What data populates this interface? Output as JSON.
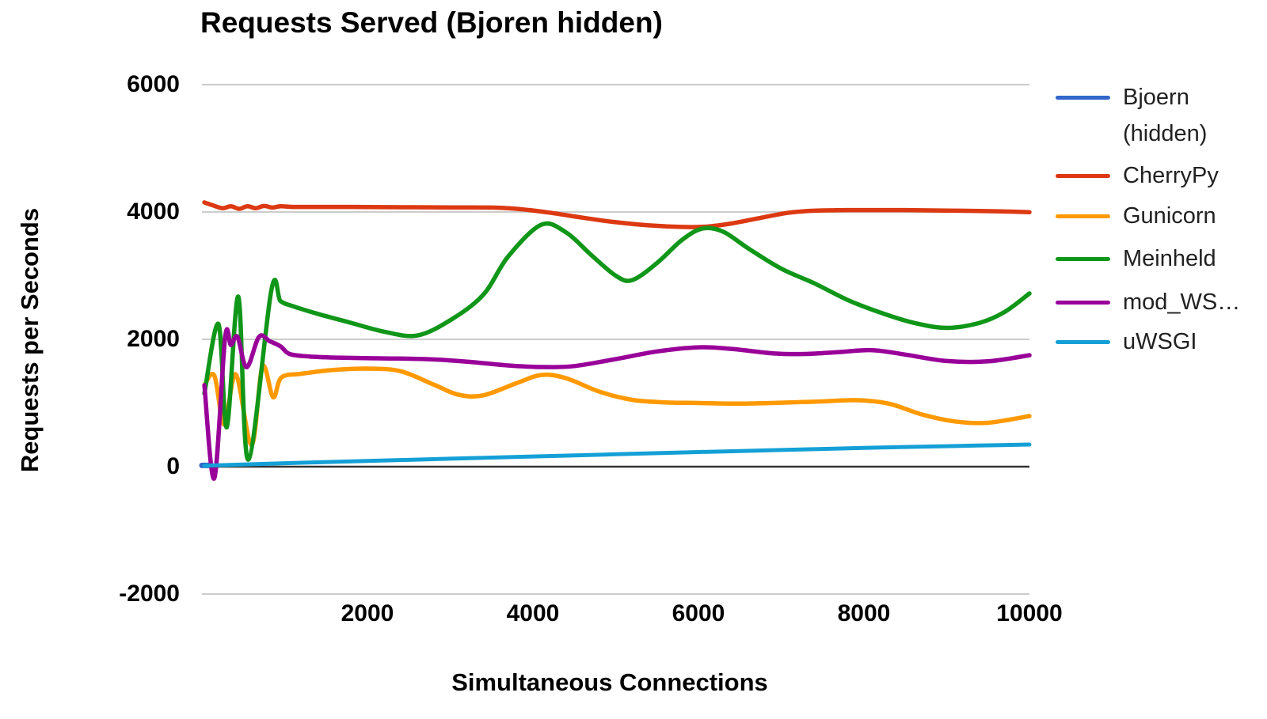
{
  "title": "Requests Served (Bjoren hidden)",
  "axes": {
    "y_title": "Requests per Seconds",
    "x_title": "Simultaneous Connections",
    "y_ticks": [
      6000,
      4000,
      2000,
      0,
      -2000
    ],
    "x_ticks": [
      2000,
      4000,
      6000,
      8000,
      10000
    ]
  },
  "colors": {
    "background": "#ffffff",
    "gridline": "#cccccc",
    "zero_axis": "#333333",
    "tick_text": "#000000",
    "legend_text": "#212121"
  },
  "legend": [
    {
      "label": "Bjoern",
      "label2": "(hidden)",
      "color": "#3366CC"
    },
    {
      "label": "CherryPy",
      "color": "#DC3912"
    },
    {
      "label": "Gunicorn",
      "color": "#FF9900"
    },
    {
      "label": "Meinheld",
      "color": "#109618"
    },
    {
      "label": "mod_WS…",
      "color": "#990099"
    },
    {
      "label": "uWSGI",
      "color": "#14A0D6"
    }
  ],
  "chart_data": {
    "type": "line",
    "title": "Requests Served (Bjoren hidden)",
    "xlabel": "Simultaneous Connections",
    "ylabel": "Requests per Seconds",
    "xlim": [
      0,
      10000
    ],
    "ylim": [
      -2000,
      6000
    ],
    "grid": true,
    "legend_position": "right",
    "x_ticks": [
      2000,
      4000,
      6000,
      8000,
      10000
    ],
    "y_ticks": [
      6000,
      4000,
      2000,
      0,
      -2000
    ],
    "series": [
      {
        "name": "Bjoern (hidden)",
        "color": "#3366CC",
        "width": 7,
        "hidden": true,
        "points": [
          [
            0,
            20
          ],
          [
            80,
            20
          ]
        ]
      },
      {
        "name": "CherryPy",
        "color": "#DC3912",
        "width": 5.5,
        "points": [
          [
            30,
            4150
          ],
          [
            120,
            4110
          ],
          [
            250,
            4060
          ],
          [
            350,
            4090
          ],
          [
            450,
            4050
          ],
          [
            550,
            4090
          ],
          [
            650,
            4060
          ],
          [
            750,
            4095
          ],
          [
            850,
            4070
          ],
          [
            950,
            4090
          ],
          [
            1100,
            4080
          ],
          [
            1500,
            4080
          ],
          [
            2000,
            4078
          ],
          [
            2500,
            4075
          ],
          [
            3000,
            4072
          ],
          [
            3500,
            4070
          ],
          [
            3800,
            4050
          ],
          [
            4200,
            3990
          ],
          [
            4600,
            3910
          ],
          [
            5000,
            3840
          ],
          [
            5400,
            3790
          ],
          [
            5800,
            3765
          ],
          [
            6100,
            3770
          ],
          [
            6400,
            3820
          ],
          [
            6800,
            3920
          ],
          [
            7100,
            3990
          ],
          [
            7400,
            4020
          ],
          [
            7800,
            4030
          ],
          [
            8200,
            4030
          ],
          [
            8600,
            4028
          ],
          [
            9000,
            4022
          ],
          [
            9400,
            4015
          ],
          [
            9700,
            4008
          ],
          [
            10000,
            3998
          ]
        ]
      },
      {
        "name": "Gunicorn",
        "color": "#FF9900",
        "width": 5.5,
        "points": [
          [
            30,
            1280
          ],
          [
            150,
            1430
          ],
          [
            270,
            660
          ],
          [
            410,
            1450
          ],
          [
            600,
            340
          ],
          [
            730,
            1570
          ],
          [
            860,
            1090
          ],
          [
            960,
            1400
          ],
          [
            1200,
            1460
          ],
          [
            1600,
            1520
          ],
          [
            2000,
            1540
          ],
          [
            2400,
            1500
          ],
          [
            2800,
            1290
          ],
          [
            3100,
            1130
          ],
          [
            3400,
            1120
          ],
          [
            3800,
            1310
          ],
          [
            4100,
            1440
          ],
          [
            4400,
            1390
          ],
          [
            4800,
            1180
          ],
          [
            5200,
            1050
          ],
          [
            5600,
            1010
          ],
          [
            6000,
            1000
          ],
          [
            6500,
            990
          ],
          [
            7000,
            1005
          ],
          [
            7500,
            1025
          ],
          [
            7900,
            1045
          ],
          [
            8300,
            990
          ],
          [
            8700,
            820
          ],
          [
            9100,
            710
          ],
          [
            9500,
            690
          ],
          [
            10000,
            795
          ]
        ]
      },
      {
        "name": "Meinheld",
        "color": "#109618",
        "width": 5.5,
        "points": [
          [
            30,
            1150
          ],
          [
            200,
            2240
          ],
          [
            300,
            620
          ],
          [
            440,
            2670
          ],
          [
            560,
            110
          ],
          [
            840,
            2780
          ],
          [
            950,
            2600
          ],
          [
            1100,
            2520
          ],
          [
            1400,
            2400
          ],
          [
            1800,
            2260
          ],
          [
            2200,
            2120
          ],
          [
            2600,
            2060
          ],
          [
            3000,
            2300
          ],
          [
            3400,
            2700
          ],
          [
            3700,
            3300
          ],
          [
            4100,
            3800
          ],
          [
            4400,
            3680
          ],
          [
            4700,
            3330
          ],
          [
            5000,
            3000
          ],
          [
            5200,
            2930
          ],
          [
            5500,
            3200
          ],
          [
            5800,
            3560
          ],
          [
            6050,
            3740
          ],
          [
            6300,
            3690
          ],
          [
            6600,
            3430
          ],
          [
            7000,
            3110
          ],
          [
            7400,
            2880
          ],
          [
            7800,
            2620
          ],
          [
            8200,
            2420
          ],
          [
            8600,
            2260
          ],
          [
            9000,
            2180
          ],
          [
            9400,
            2260
          ],
          [
            9700,
            2430
          ],
          [
            10000,
            2720
          ]
        ]
      },
      {
        "name": "mod_WS…",
        "color": "#990099",
        "width": 5.5,
        "points": [
          [
            30,
            1280
          ],
          [
            150,
            -180
          ],
          [
            280,
            2030
          ],
          [
            350,
            1910
          ],
          [
            430,
            2040
          ],
          [
            540,
            1560
          ],
          [
            690,
            2040
          ],
          [
            820,
            1970
          ],
          [
            950,
            1890
          ],
          [
            1060,
            1770
          ],
          [
            1300,
            1730
          ],
          [
            1700,
            1710
          ],
          [
            2200,
            1700
          ],
          [
            2700,
            1690
          ],
          [
            3200,
            1650
          ],
          [
            3700,
            1590
          ],
          [
            4100,
            1565
          ],
          [
            4500,
            1580
          ],
          [
            5000,
            1690
          ],
          [
            5500,
            1810
          ],
          [
            6000,
            1875
          ],
          [
            6400,
            1850
          ],
          [
            6900,
            1780
          ],
          [
            7300,
            1770
          ],
          [
            7700,
            1800
          ],
          [
            8100,
            1830
          ],
          [
            8500,
            1760
          ],
          [
            9000,
            1660
          ],
          [
            9500,
            1655
          ],
          [
            10000,
            1750
          ]
        ]
      },
      {
        "name": "uWSGI",
        "color": "#14A0D6",
        "width": 5,
        "points": [
          [
            30,
            15
          ],
          [
            1000,
            55
          ],
          [
            2000,
            90
          ],
          [
            3000,
            125
          ],
          [
            4000,
            160
          ],
          [
            5000,
            195
          ],
          [
            6000,
            230
          ],
          [
            7000,
            262
          ],
          [
            8000,
            295
          ],
          [
            9000,
            322
          ],
          [
            10000,
            348
          ]
        ]
      }
    ]
  }
}
